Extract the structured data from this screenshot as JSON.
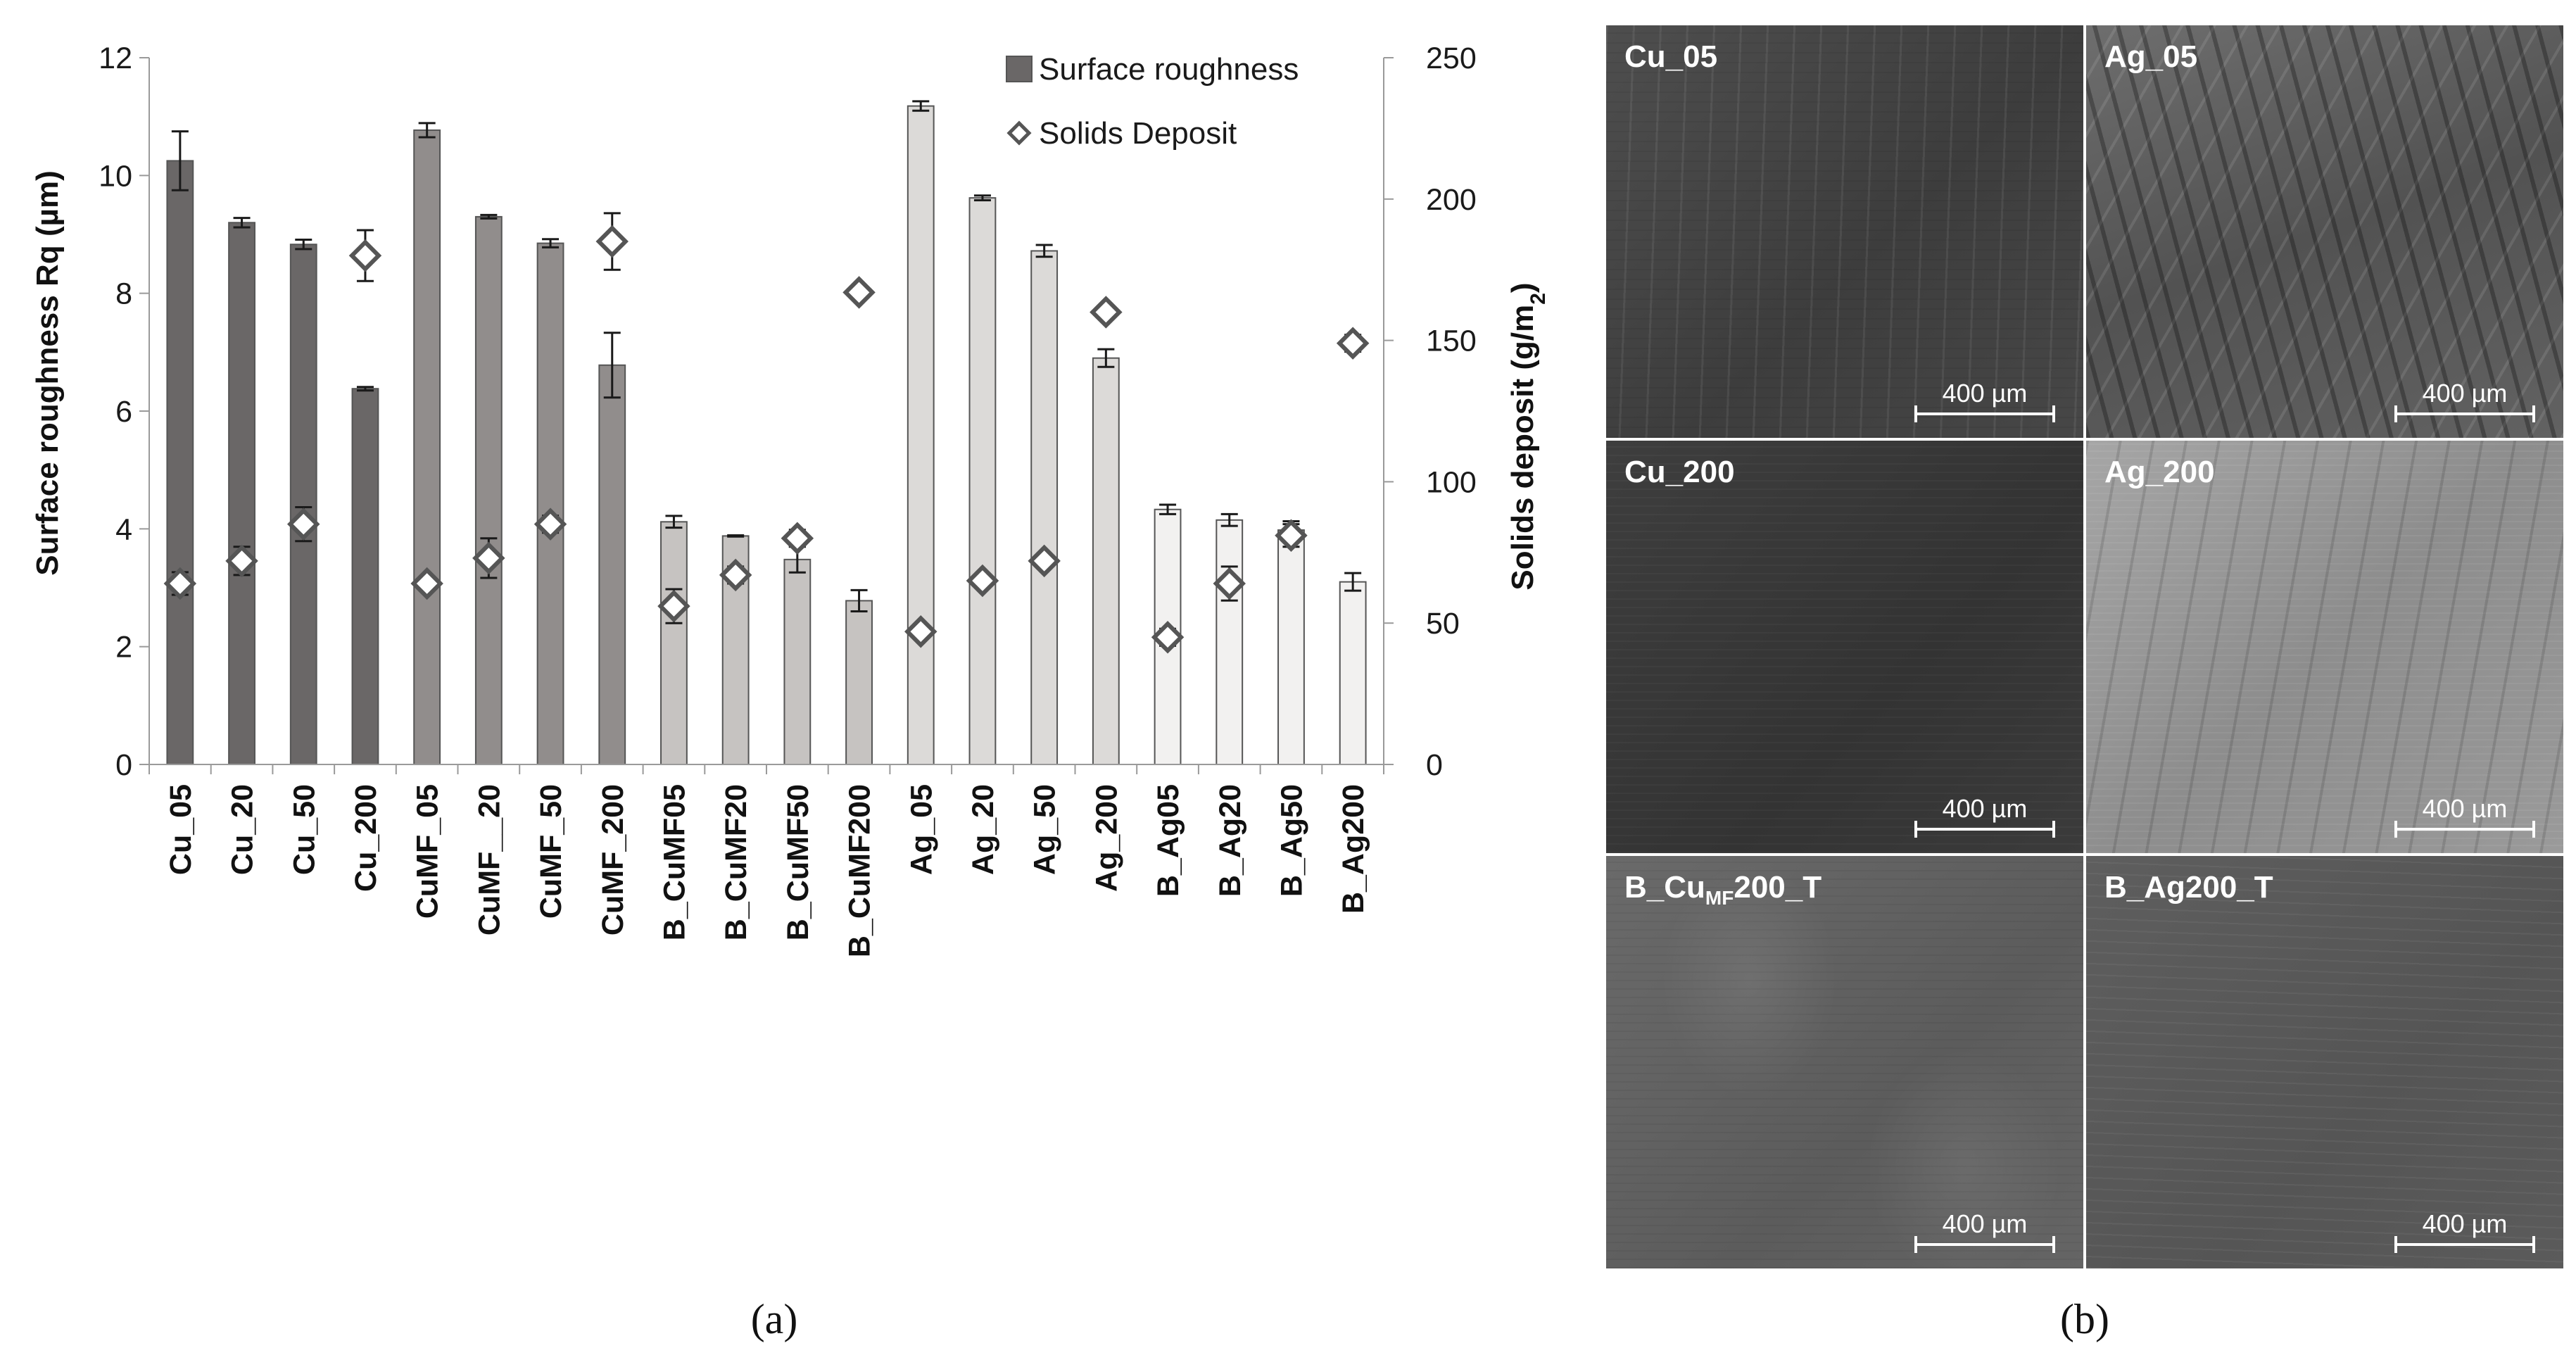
{
  "chart_data": {
    "type": "bar",
    "ylabel": "Surface roughness Rq (µm)",
    "y2label_prefix": "Solids deposit (g/m",
    "y2label_sub": "2",
    "y2label_suffix": ")",
    "ylim": [
      0,
      12
    ],
    "y2lim": [
      0,
      250
    ],
    "yticks": [
      "0",
      "2",
      "4",
      "6",
      "8",
      "10",
      "12"
    ],
    "y2ticks": [
      "0",
      "50",
      "100",
      "150",
      "200",
      "250"
    ],
    "legend_position": "top-right",
    "legend": [
      {
        "name": "Surface roughness",
        "marker": "square"
      },
      {
        "name": "Solids Deposit",
        "marker": "diamond"
      }
    ],
    "categories": [
      "Cu_05",
      "Cu_20",
      "Cu_50",
      "Cu_200",
      "CuMF_05",
      "CuMF__20",
      "CuMF_50",
      "CuMF_200",
      "B_CuMF05",
      "B_CuMF20",
      "B_CuMF50",
      "B_CuMF200",
      "Ag_05",
      "Ag_20",
      "Ag_50",
      "Ag_200",
      "B_Ag05",
      "B_Ag20",
      "B_Ag50",
      "B_Ag200"
    ],
    "series": [
      {
        "name": "Surface roughness",
        "axis": "left",
        "values": [
          10.25,
          9.2,
          8.83,
          6.38,
          10.77,
          9.3,
          8.85,
          6.78,
          4.12,
          3.88,
          3.48,
          2.78,
          11.18,
          9.62,
          8.72,
          6.9,
          4.33,
          4.15,
          3.98,
          3.1
        ],
        "errors": [
          0.5,
          0.08,
          0.08,
          0.03,
          0.12,
          0.03,
          0.07,
          0.55,
          0.1,
          0.01,
          0.22,
          0.18,
          0.08,
          0.04,
          0.1,
          0.15,
          0.08,
          0.1,
          0.15,
          0.15
        ],
        "colors": [
          "#6a6767",
          "#6a6767",
          "#6a6767",
          "#6a6767",
          "#918d8c",
          "#918d8c",
          "#918d8c",
          "#918d8c",
          "#c6c3c1",
          "#c6c3c1",
          "#c6c3c1",
          "#c6c3c1",
          "#dcdad8",
          "#dcdad8",
          "#dcdad8",
          "#dcdad8",
          "#f2f1f0",
          "#f2f1f0",
          "#f2f1f0",
          "#f2f1f0"
        ]
      },
      {
        "name": "Solids Deposit",
        "axis": "right",
        "values": [
          64,
          72,
          85,
          180,
          64,
          73,
          85,
          185,
          56,
          67,
          80,
          167,
          47,
          65,
          72,
          160,
          45,
          64,
          81,
          149
        ],
        "errors": [
          4,
          5,
          6,
          9,
          2,
          7,
          3,
          10,
          6,
          3,
          3,
          2,
          2,
          2,
          2,
          2,
          3,
          6,
          4,
          3
        ]
      }
    ]
  },
  "captions": {
    "a": "(a)",
    "b": "(b)"
  },
  "micrographs": [
    {
      "label": "Cu_05",
      "scale": "400 µm",
      "style": "t-cu05"
    },
    {
      "label": "Ag_05",
      "scale": "400 µm",
      "style": "t-ag05"
    },
    {
      "label": "Cu_200",
      "scale": "400 µm",
      "style": "t-cu200"
    },
    {
      "label": "Ag_200",
      "scale": "400 µm",
      "style": "t-ag200"
    },
    {
      "label_main": "B_Cu",
      "label_sub": "MF",
      "label_tail": "200_T",
      "scale": "400 µm",
      "style": "t-bcu"
    },
    {
      "label": "B_Ag200_T",
      "scale": "400 µm",
      "style": "t-bag"
    }
  ]
}
